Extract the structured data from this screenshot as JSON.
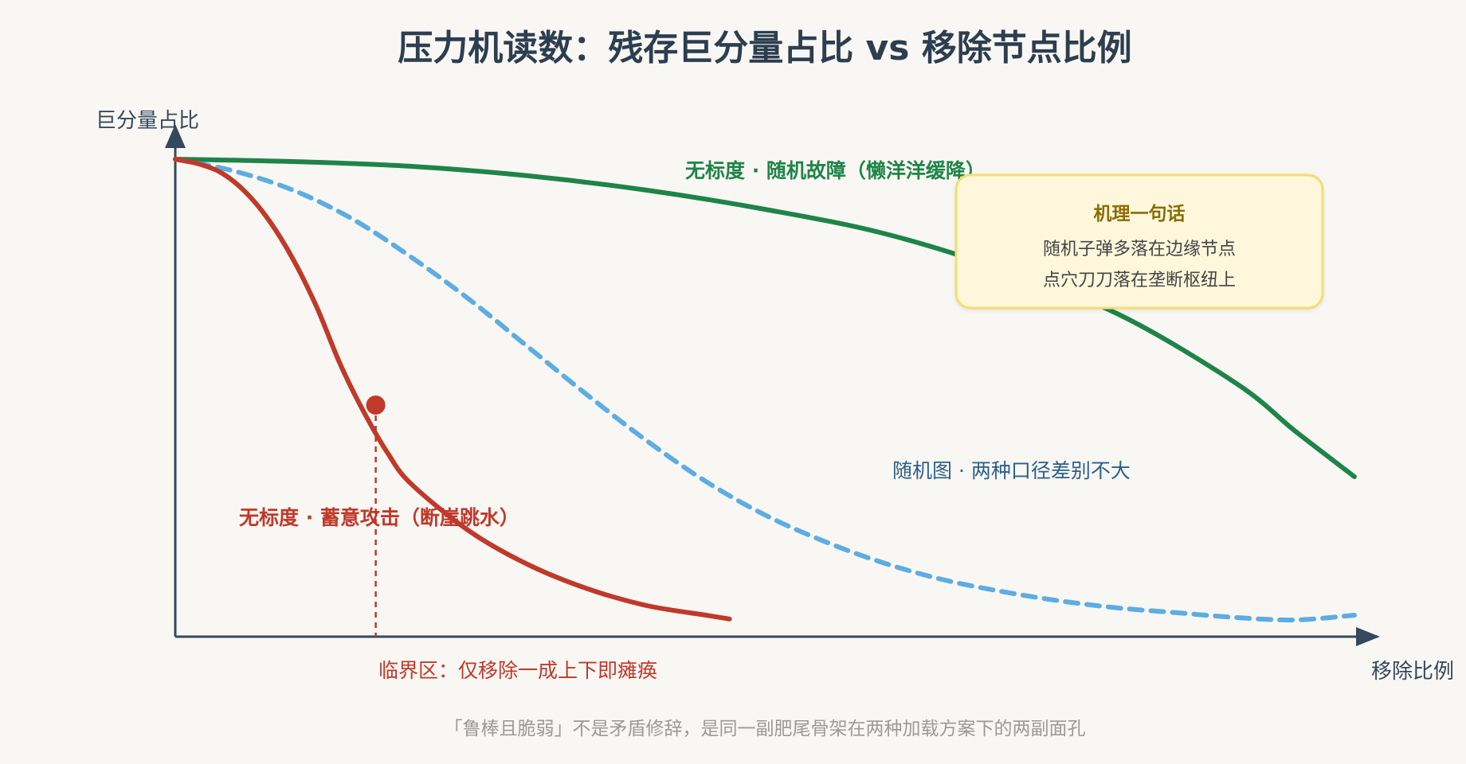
{
  "chart_data": {
    "type": "line",
    "title": "压力机读数：残存巨分量占比 vs 移除节点比例",
    "ylabel": "巨分量占比",
    "xlabel": "移除比例",
    "xlim": [
      0,
      1
    ],
    "ylim": [
      0,
      1
    ],
    "grid": false,
    "series": [
      {
        "name": "无标度 · 随机故障（懒洋洋缓降）",
        "color": "#1e8449",
        "style": "solid",
        "x": [
          0.0,
          0.1,
          0.2,
          0.3,
          0.4,
          0.5,
          0.6,
          0.7,
          0.8,
          0.9,
          0.95,
          1.0
        ],
        "y": [
          1.0,
          0.995,
          0.985,
          0.965,
          0.935,
          0.895,
          0.845,
          0.77,
          0.675,
          0.53,
          0.43,
          0.335
        ]
      },
      {
        "name": "随机图 · 两种口径差别不大",
        "color": "#5dade2",
        "style": "dashed",
        "x": [
          0.0,
          0.05,
          0.1,
          0.15,
          0.2,
          0.25,
          0.3,
          0.35,
          0.4,
          0.45,
          0.5,
          0.55,
          0.6,
          0.65,
          0.7,
          0.75,
          0.8,
          0.85,
          0.9,
          0.95,
          1.0
        ],
        "y": [
          1.0,
          0.975,
          0.935,
          0.875,
          0.795,
          0.705,
          0.605,
          0.505,
          0.41,
          0.325,
          0.255,
          0.2,
          0.155,
          0.12,
          0.095,
          0.075,
          0.06,
          0.05,
          0.04,
          0.035,
          0.045
        ]
      },
      {
        "name": "无标度 · 蓄意攻击（断崖跳水）",
        "color": "#c0392b",
        "style": "solid",
        "x": [
          0.0,
          0.02,
          0.04,
          0.06,
          0.08,
          0.1,
          0.12,
          0.14,
          0.16,
          0.18,
          0.2,
          0.25,
          0.3,
          0.35,
          0.4,
          0.45,
          0.47
        ],
        "y": [
          1.0,
          0.99,
          0.97,
          0.93,
          0.87,
          0.79,
          0.69,
          0.57,
          0.47,
          0.385,
          0.32,
          0.22,
          0.15,
          0.1,
          0.065,
          0.045,
          0.037
        ]
      }
    ],
    "critical_point": {
      "x": 0.17,
      "y": 0.485,
      "label": "临界区：仅移除一成上下即瘫痪",
      "color": "#c0392b"
    },
    "note_box": {
      "title": "机理一句话",
      "lines": [
        "随机子弹多落在边缘节点",
        "点穴刀刀落在垄断枢纽上"
      ]
    },
    "footer": "「鲁棒且脆弱」不是矛盾修辞，是同一副肥尾骨架在两种加载方案下的两副面孔"
  }
}
